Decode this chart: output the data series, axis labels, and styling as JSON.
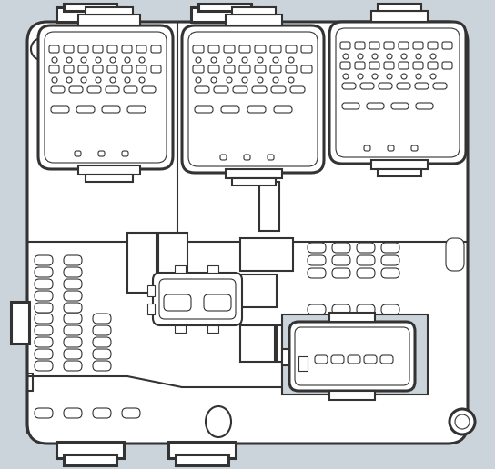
{
  "bg": "#ccd4db",
  "white": "#ffffff",
  "lc": "#333333",
  "lw_outer": 2.2,
  "lw_mid": 1.5,
  "lw_thin": 0.8,
  "figw": 5.44,
  "figh": 5.16,
  "dpi": 100
}
